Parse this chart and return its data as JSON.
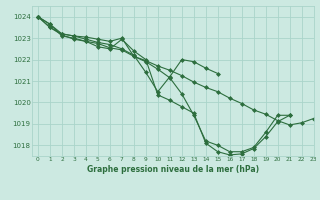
{
  "title": "Graphe pression niveau de la mer (hPa)",
  "bg_color": "#cce9e1",
  "grid_color": "#aad4ca",
  "line_color": "#2d6e3e",
  "marker_color": "#2d6e3e",
  "xlim": [
    -0.5,
    23
  ],
  "ylim": [
    1017.5,
    1024.5
  ],
  "yticks": [
    1018,
    1019,
    1020,
    1021,
    1022,
    1023,
    1024
  ],
  "xticks": [
    0,
    1,
    2,
    3,
    4,
    5,
    6,
    7,
    8,
    9,
    10,
    11,
    12,
    13,
    14,
    15,
    16,
    17,
    18,
    19,
    20,
    21,
    22,
    23
  ],
  "series": [
    [
      1024.0,
      1023.65,
      1023.2,
      1023.1,
      1023.05,
      1022.95,
      1022.85,
      1023.0,
      1022.15,
      1021.9,
      1021.55,
      1021.15,
      1020.4,
      1019.4,
      1018.2,
      1018.0,
      1017.7,
      1017.7,
      1017.9,
      1018.6,
      1019.4,
      1019.4,
      null,
      null
    ],
    [
      1024.0,
      1023.5,
      1023.2,
      1023.1,
      1022.95,
      1022.8,
      1022.7,
      1022.5,
      1022.2,
      1021.4,
      1020.5,
      1021.2,
      1022.0,
      1021.9,
      1021.6,
      1021.35,
      null,
      null,
      null,
      null,
      null,
      null,
      null,
      null
    ],
    [
      1024.0,
      1023.65,
      1023.1,
      1023.0,
      1022.85,
      1022.6,
      1022.5,
      1022.95,
      1022.4,
      1022.0,
      1020.35,
      1020.1,
      1019.8,
      1019.5,
      1018.1,
      1017.7,
      1017.55,
      1017.6,
      1017.85,
      1018.4,
      1019.1,
      1019.4,
      null,
      null
    ],
    [
      1024.0,
      1023.5,
      1023.15,
      1022.95,
      1022.85,
      1022.75,
      1022.55,
      1022.45,
      1022.15,
      1021.95,
      1021.7,
      1021.5,
      1021.25,
      1020.95,
      1020.7,
      1020.5,
      1020.2,
      1019.95,
      1019.65,
      1019.45,
      1019.15,
      1018.95,
      1019.05,
      1019.25
    ]
  ]
}
